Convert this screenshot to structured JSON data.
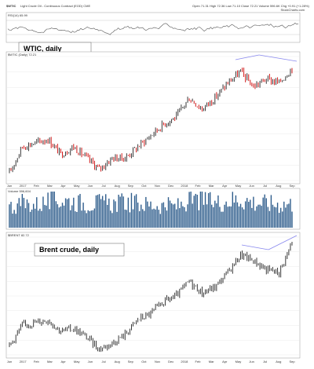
{
  "header": {
    "symbol": "$WTIC",
    "description": "Light Crude Oil - Continuous Contract (EOD) CME",
    "stats": "Open 71.31  High 72.36  Low 71.10  Close 72.21  Volume 596.6K  Chg +0.91 (+1.28%)",
    "site": "StockCharts.com"
  },
  "panels": {
    "rsi_label": "RSI(14) 65.99",
    "wtic_label": "$WTIC (Daily) 72.21",
    "volume_label": "Volume 596,604",
    "brent_label": "$BRENT 82.72"
  },
  "callouts": {
    "wtic": "WTIC, daily",
    "brent": "Brent crude, daily"
  },
  "x_ticks_top": [
    "Jun",
    "2017",
    "Feb",
    "Mar",
    "Apr",
    "May",
    "Jun",
    "Jul",
    "Aug",
    "Sep",
    "Oct",
    "Nov",
    "Dec",
    "2018",
    "Feb",
    "Mar",
    "Apr",
    "May",
    "Jun",
    "Jul",
    "Aug",
    "Sep"
  ],
  "x_ticks_bottom": [
    "Jun",
    "2017",
    "Feb",
    "Mar",
    "Apr",
    "May",
    "Jun",
    "Jul",
    "Aug",
    "Sep",
    "Oct",
    "Nov",
    "Dec",
    "2018",
    "Feb",
    "Mar",
    "Apr",
    "May",
    "Jun",
    "Jul",
    "Aug",
    "Sep"
  ],
  "colors": {
    "up": "#222222",
    "down": "#cc0000",
    "volume": "#2f5d8c",
    "trendline": "#8888ee",
    "rsi": "#555555",
    "rsi_overbought": "#3a9a4a"
  },
  "chart_data": [
    {
      "type": "line",
      "title": "$WTIC",
      "series": [
        {
          "name": "$WTIC (Daily)",
          "x": [
            "2016-11",
            "2016-12",
            "2017-01",
            "2017-02",
            "2017-03",
            "2017-04",
            "2017-05",
            "2017-06",
            "2017-07",
            "2017-08",
            "2017-09",
            "2017-10",
            "2017-11",
            "2017-12",
            "2018-01",
            "2018-02",
            "2018-03",
            "2018-04",
            "2018-05",
            "2018-06",
            "2018-07",
            "2018-08",
            "2018-09"
          ],
          "values": [
            44,
            51,
            52,
            53,
            49,
            51,
            48,
            45,
            48,
            48,
            51,
            54,
            57,
            59,
            64,
            61,
            64,
            68,
            71,
            67,
            69,
            68,
            72
          ]
        }
      ],
      "ylim": [
        42,
        75
      ]
    },
    {
      "type": "bar",
      "title": "Volume",
      "series": [
        {
          "name": "Volume",
          "values": [
            520,
            610,
            580,
            640,
            700,
            660,
            600,
            620,
            590,
            640,
            610,
            570,
            560,
            540,
            650,
            700,
            620,
            680,
            720,
            640,
            610,
            590,
            597
          ]
        }
      ]
    },
    {
      "type": "line",
      "title": "$BRENT",
      "series": [
        {
          "name": "$BRENT",
          "x": [
            "2016-11",
            "2016-12",
            "2017-01",
            "2017-02",
            "2017-03",
            "2017-04",
            "2017-05",
            "2017-06",
            "2017-07",
            "2017-08",
            "2017-09",
            "2017-10",
            "2017-11",
            "2017-12",
            "2018-01",
            "2018-02",
            "2018-03",
            "2018-04",
            "2018-05",
            "2018-06",
            "2018-07",
            "2018-08",
            "2018-09"
          ],
          "values": [
            47,
            54,
            55,
            56,
            52,
            53,
            50,
            46,
            48,
            51,
            56,
            58,
            62,
            64,
            69,
            65,
            67,
            72,
            78,
            76,
            73,
            72,
            82
          ]
        }
      ],
      "ylim": [
        44,
        84
      ]
    }
  ]
}
